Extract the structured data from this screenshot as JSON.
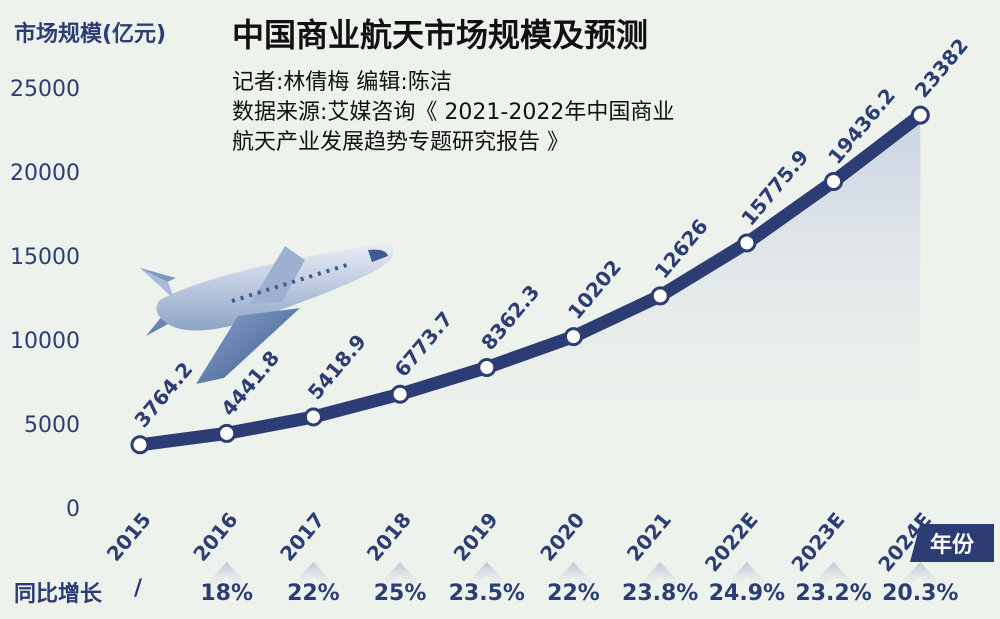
{
  "header": {
    "ylabel": "市场规模(亿元)",
    "title": "中国商业航天市场规模及预测",
    "credits": "记者:林倩梅   编辑:陈洁",
    "source_line1": "数据来源:艾媒咨询《 2021-2022年中国商业",
    "source_line2": "航天产业发展趋势专题研究报告 》"
  },
  "footer": {
    "xunit": "年份",
    "growth_label": "同比增长",
    "growth_slash": "/"
  },
  "colors": {
    "background": "#eef2ec",
    "line": "#2b3d74",
    "axis_text": "#2b3d74",
    "area": "#dde3ee"
  },
  "chart_data": {
    "type": "line",
    "categories": [
      "2015",
      "2016",
      "2017",
      "2018",
      "2019",
      "2020",
      "2021",
      "2022E",
      "2023E",
      "2024E"
    ],
    "values": [
      3764.2,
      4441.8,
      5418.9,
      6773.7,
      8362.3,
      10202,
      12626,
      15775.9,
      19436.2,
      23382
    ],
    "value_labels": [
      "3764.2",
      "4441.8",
      "5418.9",
      "6773.7",
      "8362.3",
      "10202",
      "12626",
      "15775.9",
      "19436.2",
      "23382"
    ],
    "growth": [
      "",
      "18%",
      "22%",
      "25%",
      "23.5%",
      "22%",
      "23.8%",
      "24.9%",
      "23.2%",
      "20.3%"
    ],
    "yticks": [
      0,
      5000,
      10000,
      15000,
      20000,
      25000
    ],
    "ylim": [
      0,
      25000
    ],
    "ylabel": "市场规模(亿元)",
    "xlabel": "年份",
    "grid": false
  }
}
